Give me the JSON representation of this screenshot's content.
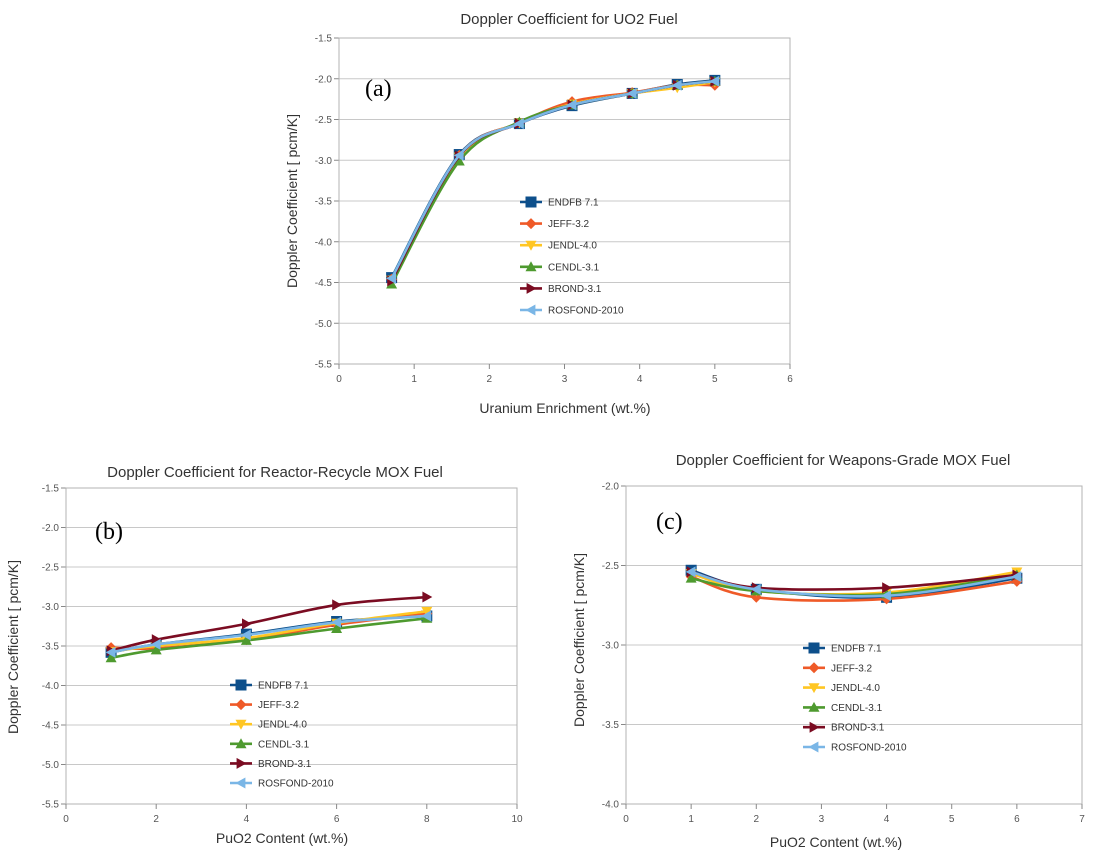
{
  "colors": {
    "ENDFB 7.1": "#0d4f8b",
    "JEFF-3.2": "#ef5a28",
    "JENDL-4.0": "#ffc623",
    "CENDL-3.1": "#4e9a2f",
    "BROND-3.1": "#7b0c22",
    "ROSFOND-2010": "#7ab6e6"
  },
  "markers": {
    "ENDFB 7.1": "square",
    "JEFF-3.2": "diamond",
    "JENDL-4.0": "tri-down",
    "CENDL-3.1": "tri-up",
    "BROND-3.1": "tri-right",
    "ROSFOND-2010": "tri-left"
  },
  "chart_data": [
    {
      "type": "line",
      "title": "Doppler Coefficient for UO2 Fuel",
      "panel_label": "(a)",
      "xlabel": "Uranium Enrichment (wt.%)",
      "ylabel": "Doppler Coefficient [ pcm/K]",
      "xlim": [
        0,
        6
      ],
      "ylim": [
        -5.5,
        -1.5
      ],
      "xticks": [
        0,
        1,
        2,
        3,
        4,
        5,
        6
      ],
      "xtick_labels": [
        "0",
        "1",
        "2",
        "3",
        "4",
        "5",
        "6"
      ],
      "yticks": [
        -5.5,
        -5.0,
        -4.5,
        -4.0,
        -3.5,
        -3.0,
        -2.5,
        -2.0,
        -1.5
      ],
      "ytick_labels": [
        "-5.5",
        "-5.0",
        "-4.5",
        "-4.0",
        "-3.5",
        "-3.0",
        "-2.5",
        "-2.0",
        "-1.5"
      ],
      "grid": "horizontal",
      "legend": "center",
      "x": [
        0.7,
        1.6,
        2.4,
        3.1,
        3.9,
        4.5,
        5.0
      ],
      "series": [
        {
          "name": "ENDFB 7.1",
          "values": [
            -4.44,
            -2.93,
            -2.55,
            -2.33,
            -2.18,
            -2.07,
            -2.02
          ]
        },
        {
          "name": "JEFF-3.2",
          "values": [
            -4.46,
            -2.94,
            -2.54,
            -2.28,
            -2.17,
            -2.08,
            -2.08
          ]
        },
        {
          "name": "JENDL-4.0",
          "values": [
            -4.47,
            -2.96,
            -2.54,
            -2.31,
            -2.18,
            -2.11,
            -2.04
          ]
        },
        {
          "name": "CENDL-3.1",
          "values": [
            -4.52,
            -3.01,
            -2.53,
            -2.32,
            -2.18,
            -2.08,
            -2.03
          ]
        },
        {
          "name": "BROND-3.1",
          "values": [
            -4.48,
            -2.95,
            -2.55,
            -2.32,
            -2.18,
            -2.08,
            -2.03
          ]
        },
        {
          "name": "ROSFOND-2010",
          "values": [
            -4.45,
            -2.94,
            -2.55,
            -2.32,
            -2.18,
            -2.08,
            -2.03
          ]
        }
      ]
    },
    {
      "type": "line",
      "title": "Doppler Coefficient for Reactor-Recycle MOX Fuel",
      "panel_label": "(b)",
      "xlabel": "PuO2 Content (wt.%)",
      "ylabel": "Doppler Coefficient [ pcm/K]",
      "xlim": [
        0,
        10
      ],
      "ylim": [
        -5.5,
        -1.5
      ],
      "xticks": [
        0,
        2,
        4,
        6,
        8,
        10
      ],
      "xtick_labels": [
        "0",
        "2",
        "4",
        "6",
        "8",
        "10"
      ],
      "yticks": [
        -5.5,
        -5.0,
        -4.5,
        -4.0,
        -3.5,
        -3.0,
        -2.5,
        -2.0,
        -1.5
      ],
      "ytick_labels": [
        "-5.5",
        "-5.0",
        "-4.5",
        "-4.0",
        "-3.5",
        "-3.0",
        "-2.5",
        "-2.0",
        "-1.5"
      ],
      "grid": "horizontal",
      "legend": "bottom-center",
      "x": [
        1,
        2,
        4,
        6,
        8
      ],
      "series": [
        {
          "name": "ENDFB 7.1",
          "values": [
            -3.58,
            -3.48,
            -3.35,
            -3.19,
            -3.12
          ]
        },
        {
          "name": "JEFF-3.2",
          "values": [
            -3.52,
            -3.53,
            -3.42,
            -3.23,
            -3.09
          ]
        },
        {
          "name": "JENDL-4.0",
          "values": [
            -3.57,
            -3.5,
            -3.4,
            -3.21,
            -3.06
          ]
        },
        {
          "name": "CENDL-3.1",
          "values": [
            -3.65,
            -3.55,
            -3.43,
            -3.28,
            -3.15
          ]
        },
        {
          "name": "BROND-3.1",
          "values": [
            -3.56,
            -3.42,
            -3.22,
            -2.98,
            -2.88
          ]
        },
        {
          "name": "ROSFOND-2010",
          "values": [
            -3.58,
            -3.48,
            -3.36,
            -3.2,
            -3.12
          ]
        }
      ]
    },
    {
      "type": "line",
      "title": "Doppler Coefficient for Weapons-Grade MOX Fuel",
      "panel_label": "(c)",
      "xlabel": "PuO2 Content (wt.%)",
      "ylabel": "Doppler Coefficient [ pcm/K]",
      "xlim": [
        0,
        7
      ],
      "ylim": [
        -4.0,
        -2.0
      ],
      "xticks": [
        0,
        1,
        2,
        3,
        4,
        5,
        6,
        7
      ],
      "xtick_labels": [
        "0",
        "1",
        "2",
        "3",
        "4",
        "5",
        "6",
        "7"
      ],
      "yticks": [
        -4.0,
        -3.5,
        -3.0,
        -2.5,
        -2.0
      ],
      "ytick_labels": [
        "-4.0",
        "-3.5",
        "-3.0",
        "-2.5",
        "-2.0"
      ],
      "grid": "horizontal",
      "legend": "bottom-center",
      "x": [
        1,
        2,
        4,
        6
      ],
      "series": [
        {
          "name": "ENDFB 7.1",
          "values": [
            -2.53,
            -2.65,
            -2.7,
            -2.58
          ]
        },
        {
          "name": "JEFF-3.2",
          "values": [
            -2.57,
            -2.7,
            -2.71,
            -2.6
          ]
        },
        {
          "name": "JENDL-4.0",
          "values": [
            -2.55,
            -2.66,
            -2.67,
            -2.54
          ]
        },
        {
          "name": "CENDL-3.1",
          "values": [
            -2.58,
            -2.66,
            -2.68,
            -2.56
          ]
        },
        {
          "name": "BROND-3.1",
          "values": [
            -2.54,
            -2.64,
            -2.64,
            -2.56
          ]
        },
        {
          "name": "ROSFOND-2010",
          "values": [
            -2.54,
            -2.65,
            -2.69,
            -2.57
          ]
        }
      ]
    }
  ]
}
